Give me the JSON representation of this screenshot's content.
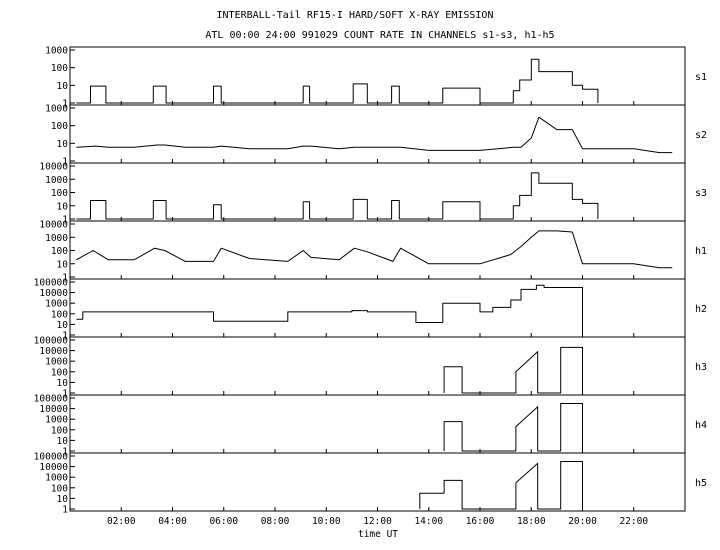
{
  "title": "INTERBALL-Tail RF15-I HARD/SOFT X-RAY EMISSION",
  "subtitle": "ATL 00:00 24:00 991029  COUNT RATE IN CHANNELS s1-s3, h1-h5",
  "chart_data": {
    "type": "line",
    "title": "INTERBALL-Tail RF15-I HARD/SOFT X-RAY EMISSION",
    "subtitle": "ATL 00:00 24:00 991029  COUNT RATE IN CHANNELS s1-s3, h1-h5",
    "xlabel": "time UT",
    "xlim": [
      0,
      24
    ],
    "x_ticks": [
      {
        "value": 2,
        "label": "02:00"
      },
      {
        "value": 4,
        "label": "04:00"
      },
      {
        "value": 6,
        "label": "06:00"
      },
      {
        "value": 8,
        "label": "08:00"
      },
      {
        "value": 10,
        "label": "10:00"
      },
      {
        "value": 12,
        "label": "12:00"
      },
      {
        "value": 14,
        "label": "14:00"
      },
      {
        "value": 16,
        "label": "16:00"
      },
      {
        "value": 18,
        "label": "18:00"
      },
      {
        "value": 20,
        "label": "20:00"
      },
      {
        "value": 22,
        "label": "22:00"
      }
    ],
    "y_scale": "log",
    "grid": false,
    "panels": [
      {
        "name": "s1",
        "ylim": [
          1,
          1000
        ],
        "y_ticks": [
          {
            "value": 1,
            "label": "1"
          },
          {
            "value": 10,
            "label": "10"
          },
          {
            "value": 100,
            "label": "100"
          },
          {
            "value": 1000,
            "label": "1000"
          }
        ],
        "x": [
          0.25,
          0.8,
          0.8,
          1.4,
          1.4,
          3.25,
          3.25,
          3.75,
          3.75,
          5.6,
          5.6,
          5.9,
          5.9,
          9.1,
          9.1,
          9.35,
          9.35,
          11.05,
          11.05,
          11.6,
          11.6,
          12.55,
          12.55,
          12.85,
          12.85,
          14.55,
          14.55,
          16.0,
          16.0,
          17.3,
          17.3,
          17.55,
          17.55,
          18.0,
          18.0,
          18.3,
          18.3,
          19.0,
          19.0,
          19.6,
          19.6,
          20.0,
          20.0,
          20.2,
          20.2,
          20.6,
          20.6
        ],
        "y": [
          1,
          1,
          9,
          9,
          1,
          1,
          9,
          9,
          1,
          1,
          9,
          9,
          1,
          1,
          9,
          9,
          1,
          1,
          12,
          12,
          1,
          1,
          9,
          9,
          1,
          1,
          7,
          7,
          1,
          1,
          5,
          5,
          20,
          20,
          300,
          300,
          60,
          60,
          60,
          60,
          10,
          10,
          6,
          6,
          6,
          6,
          1
        ]
      },
      {
        "name": "s2",
        "ylim": [
          1,
          1000
        ],
        "y_ticks": [
          {
            "value": 1,
            "label": "1"
          },
          {
            "value": 10,
            "label": "10"
          },
          {
            "value": 100,
            "label": "100"
          },
          {
            "value": 1000,
            "label": "1000"
          }
        ],
        "x": [
          0.25,
          1.0,
          1.5,
          2.5,
          3.4,
          3.7,
          4.5,
          5.6,
          5.9,
          7.0,
          8.5,
          9.1,
          9.4,
          10.5,
          11.1,
          11.6,
          12.6,
          12.9,
          14.0,
          14.6,
          16.0,
          17.3,
          17.6,
          18.0,
          18.3,
          19.0,
          19.6,
          20.0,
          20.6,
          22.0,
          23.0,
          23.5
        ],
        "y": [
          6,
          7,
          6,
          6,
          8,
          8,
          6,
          6,
          7,
          5,
          5,
          7,
          7,
          5,
          6,
          6,
          6,
          6,
          4,
          4,
          4,
          6,
          6,
          20,
          300,
          60,
          60,
          5,
          5,
          5,
          3,
          3
        ]
      },
      {
        "name": "s3",
        "ylim": [
          1,
          10000
        ],
        "y_ticks": [
          {
            "value": 1,
            "label": "1"
          },
          {
            "value": 10,
            "label": "10"
          },
          {
            "value": 100,
            "label": "100"
          },
          {
            "value": 1000,
            "label": "1000"
          },
          {
            "value": 10000,
            "label": "10000"
          }
        ],
        "x": [
          0.25,
          0.8,
          0.8,
          1.4,
          1.4,
          3.25,
          3.25,
          3.75,
          3.75,
          5.6,
          5.6,
          5.9,
          5.9,
          9.1,
          9.1,
          9.35,
          9.35,
          11.05,
          11.05,
          11.6,
          11.6,
          12.55,
          12.55,
          12.85,
          12.85,
          14.55,
          14.55,
          16.0,
          16.0,
          17.3,
          17.3,
          17.55,
          17.55,
          18.0,
          18.0,
          18.3,
          18.3,
          19.0,
          19.0,
          19.6,
          19.6,
          20.0,
          20.0,
          20.2,
          20.2,
          20.6,
          20.6
        ],
        "y": [
          1,
          1,
          25,
          25,
          1,
          1,
          25,
          25,
          1,
          1,
          12,
          12,
          1,
          1,
          20,
          20,
          1,
          1,
          30,
          30,
          1,
          1,
          25,
          25,
          1,
          1,
          20,
          20,
          1,
          1,
          10,
          10,
          60,
          60,
          3000,
          3000,
          500,
          500,
          500,
          500,
          30,
          30,
          15,
          15,
          15,
          15,
          1
        ]
      },
      {
        "name": "h1",
        "ylim": [
          1,
          10000
        ],
        "y_ticks": [
          {
            "value": 1,
            "label": "1"
          },
          {
            "value": 10,
            "label": "10"
          },
          {
            "value": 100,
            "label": "100"
          },
          {
            "value": 1000,
            "label": "1000"
          },
          {
            "value": 10000,
            "label": "10000"
          }
        ],
        "x": [
          0.25,
          0.9,
          1.5,
          2.5,
          3.3,
          3.7,
          4.5,
          5.6,
          5.9,
          7.0,
          8.5,
          9.1,
          9.4,
          10.5,
          11.1,
          11.6,
          12.6,
          12.9,
          14.0,
          14.6,
          16.0,
          17.2,
          17.6,
          18.0,
          18.3,
          19.0,
          19.6,
          20.0,
          20.6,
          22.0,
          23.0,
          23.5
        ],
        "y": [
          20,
          100,
          20,
          20,
          150,
          100,
          15,
          15,
          150,
          25,
          15,
          100,
          30,
          20,
          150,
          80,
          15,
          150,
          10,
          10,
          10,
          50,
          200,
          1000,
          3000,
          3000,
          2500,
          10,
          10,
          10,
          5,
          5
        ]
      },
      {
        "name": "h2",
        "ylim": [
          1,
          100000
        ],
        "y_ticks": [
          {
            "value": 1,
            "label": "1"
          },
          {
            "value": 10,
            "label": "10"
          },
          {
            "value": 100,
            "label": "100"
          },
          {
            "value": 1000,
            "label": "1000"
          },
          {
            "value": 10000,
            "label": "10000"
          },
          {
            "value": 100000,
            "label": "100000"
          }
        ],
        "x": [
          0.25,
          0.5,
          0.5,
          5.6,
          5.6,
          5.9,
          5.9,
          8.5,
          8.5,
          11.0,
          11.0,
          11.6,
          11.6,
          12.55,
          12.55,
          13.5,
          13.5,
          14.55,
          14.55,
          16.0,
          16.0,
          16.5,
          16.5,
          17.2,
          17.2,
          17.6,
          17.6,
          18.2,
          18.2,
          18.5,
          18.5,
          20.0,
          20.0
        ],
        "y": [
          30,
          30,
          150,
          150,
          20,
          20,
          20,
          20,
          150,
          150,
          200,
          200,
          150,
          150,
          150,
          150,
          15,
          15,
          1000,
          1000,
          150,
          150,
          400,
          400,
          2000,
          2000,
          20000,
          20000,
          50000,
          50000,
          30000,
          30000,
          1
        ]
      },
      {
        "name": "h3",
        "ylim": [
          1,
          100000
        ],
        "y_ticks": [
          {
            "value": 1,
            "label": "1"
          },
          {
            "value": 10,
            "label": "10"
          },
          {
            "value": 100,
            "label": "100"
          },
          {
            "value": 1000,
            "label": "1000"
          },
          {
            "value": 10000,
            "label": "10000"
          },
          {
            "value": 100000,
            "label": "100000"
          }
        ],
        "x": [
          14.6,
          14.6,
          15.3,
          15.3,
          17.4,
          17.4,
          18.25,
          18.25,
          19.15,
          19.15,
          20.0,
          20.0
        ],
        "y": [
          1,
          300,
          300,
          1,
          1,
          100,
          8000,
          1,
          1,
          20000,
          20000,
          1
        ]
      },
      {
        "name": "h4",
        "ylim": [
          1,
          100000
        ],
        "y_ticks": [
          {
            "value": 1,
            "label": "1"
          },
          {
            "value": 10,
            "label": "10"
          },
          {
            "value": 100,
            "label": "100"
          },
          {
            "value": 1000,
            "label": "1000"
          },
          {
            "value": 10000,
            "label": "10000"
          },
          {
            "value": 100000,
            "label": "100000"
          }
        ],
        "x": [
          14.6,
          14.6,
          15.3,
          15.3,
          17.4,
          17.4,
          18.25,
          18.25,
          19.15,
          19.15,
          20.0,
          20.0
        ],
        "y": [
          1,
          600,
          600,
          1,
          1,
          200,
          15000,
          1,
          1,
          30000,
          30000,
          1
        ]
      },
      {
        "name": "h5",
        "ylim": [
          1,
          100000
        ],
        "y_ticks": [
          {
            "value": 1,
            "label": "1"
          },
          {
            "value": 10,
            "label": "10"
          },
          {
            "value": 100,
            "label": "100"
          },
          {
            "value": 1000,
            "label": "1000"
          },
          {
            "value": 10000,
            "label": "10000"
          },
          {
            "value": 100000,
            "label": "100000"
          }
        ],
        "x": [
          13.65,
          13.65,
          14.6,
          14.6,
          15.3,
          15.3,
          17.4,
          17.4,
          18.25,
          18.25,
          19.15,
          19.15,
          20.0,
          20.0
        ],
        "y": [
          1,
          30,
          30,
          500,
          500,
          1,
          1,
          300,
          20000,
          1,
          1,
          30000,
          30000,
          1
        ]
      }
    ]
  }
}
